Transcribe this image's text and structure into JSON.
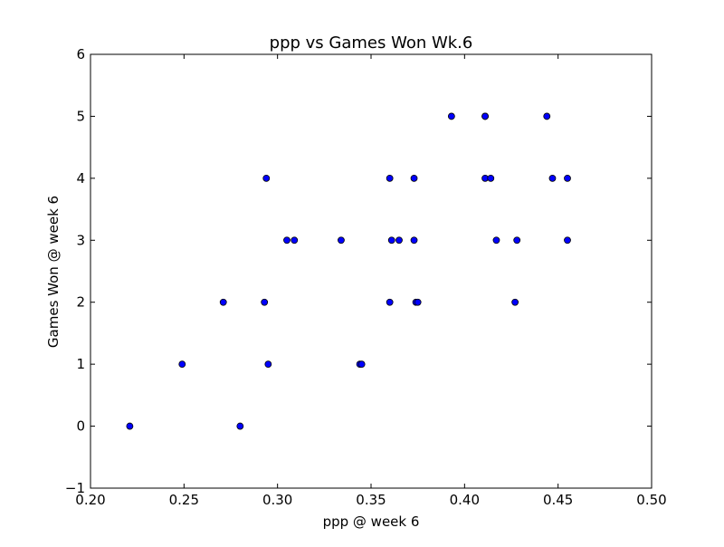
{
  "chart_data": {
    "type": "scatter",
    "title": "ppp vs Games Won Wk.6",
    "xlabel": "ppp @ week 6",
    "ylabel": "Games Won @ week 6",
    "xlim": [
      0.2,
      0.5
    ],
    "ylim": [
      -1,
      6
    ],
    "xticks": [
      "0.20",
      "0.25",
      "0.30",
      "0.35",
      "0.40",
      "0.45",
      "0.50"
    ],
    "yticks": [
      "−1",
      "0",
      "1",
      "2",
      "3",
      "4",
      "5",
      "6"
    ],
    "grid": false,
    "marker_color": "#0000ff",
    "marker_edge_color": "#000000",
    "points": [
      {
        "x": 0.221,
        "y": 0
      },
      {
        "x": 0.28,
        "y": 0
      },
      {
        "x": 0.249,
        "y": 1
      },
      {
        "x": 0.295,
        "y": 1
      },
      {
        "x": 0.344,
        "y": 1
      },
      {
        "x": 0.345,
        "y": 1
      },
      {
        "x": 0.271,
        "y": 2
      },
      {
        "x": 0.293,
        "y": 2
      },
      {
        "x": 0.36,
        "y": 2
      },
      {
        "x": 0.374,
        "y": 2
      },
      {
        "x": 0.375,
        "y": 2
      },
      {
        "x": 0.427,
        "y": 2
      },
      {
        "x": 0.305,
        "y": 3
      },
      {
        "x": 0.309,
        "y": 3
      },
      {
        "x": 0.334,
        "y": 3
      },
      {
        "x": 0.361,
        "y": 3
      },
      {
        "x": 0.365,
        "y": 3
      },
      {
        "x": 0.373,
        "y": 3
      },
      {
        "x": 0.417,
        "y": 3
      },
      {
        "x": 0.428,
        "y": 3
      },
      {
        "x": 0.455,
        "y": 3
      },
      {
        "x": 0.294,
        "y": 4
      },
      {
        "x": 0.36,
        "y": 4
      },
      {
        "x": 0.373,
        "y": 4
      },
      {
        "x": 0.411,
        "y": 4
      },
      {
        "x": 0.414,
        "y": 4
      },
      {
        "x": 0.447,
        "y": 4
      },
      {
        "x": 0.455,
        "y": 4
      },
      {
        "x": 0.393,
        "y": 5
      },
      {
        "x": 0.411,
        "y": 5
      },
      {
        "x": 0.411,
        "y": 5
      },
      {
        "x": 0.444,
        "y": 5
      }
    ]
  }
}
